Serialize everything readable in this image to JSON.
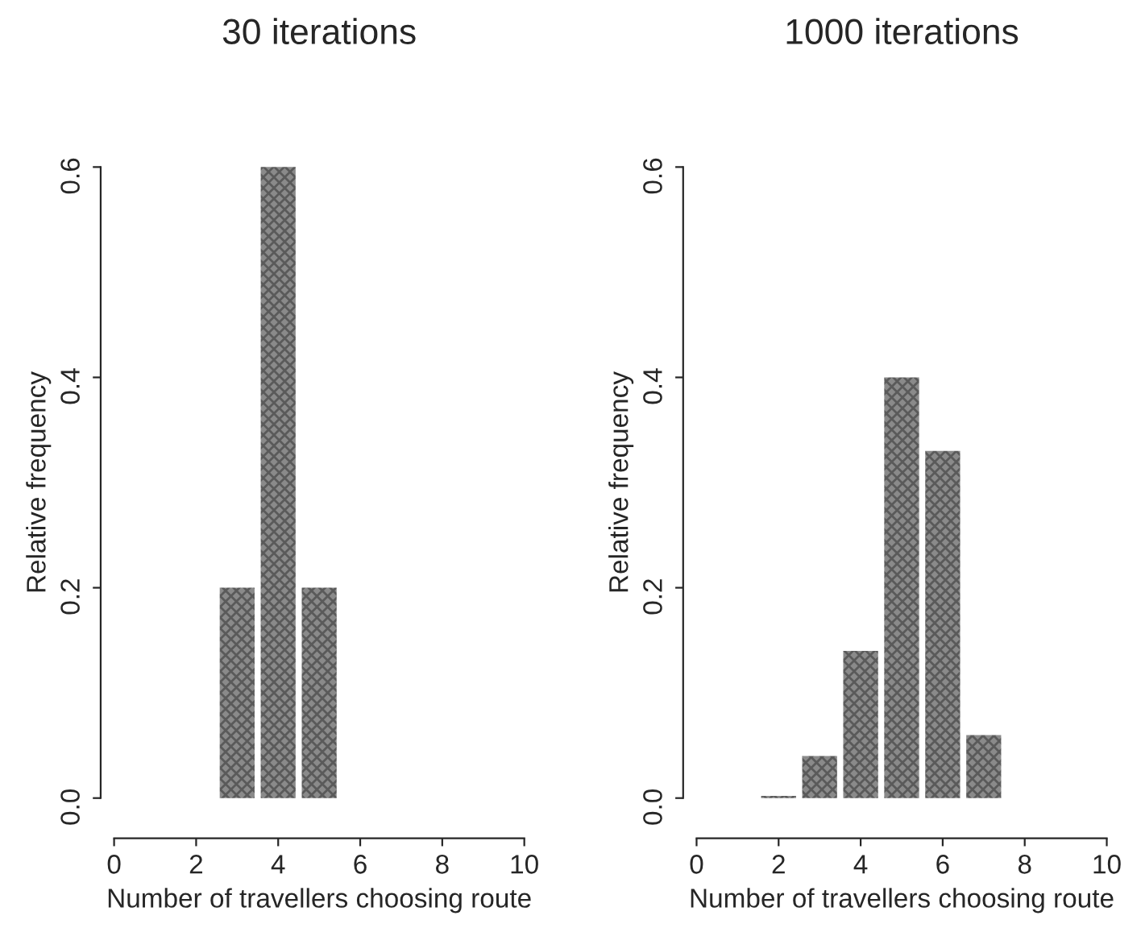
{
  "chart_data": [
    {
      "type": "bar",
      "title": "30 iterations",
      "xlabel": "Number of travellers choosing route",
      "ylabel": "Relative frequency",
      "x": [
        3,
        4,
        5
      ],
      "values": [
        0.2,
        0.6,
        0.2
      ],
      "color": "#8a8a8a",
      "xlim": [
        0,
        10
      ],
      "xticks": [
        0,
        2,
        4,
        6,
        8,
        10
      ],
      "ylim": [
        0,
        0.6
      ],
      "yticks": [
        {
          "value": 0,
          "label": "0.0"
        },
        0.2,
        0.4,
        0.6
      ],
      "grid": false,
      "legend": false
    },
    {
      "type": "bar",
      "title": "1000 iterations",
      "xlabel": "Number of travellers choosing route",
      "ylabel": "Relative frequency",
      "x": [
        2,
        3,
        4,
        5,
        6,
        7
      ],
      "values": [
        0.002,
        0.04,
        0.14,
        0.4,
        0.33,
        0.06
      ],
      "color": "#8a8a8a",
      "xlim": [
        0,
        10
      ],
      "xticks": [
        0,
        2,
        4,
        6,
        8,
        10
      ],
      "ylim": [
        0,
        0.6
      ],
      "yticks": [
        {
          "value": 0,
          "label": "0.0"
        },
        0.2,
        0.4,
        0.6
      ],
      "grid": false,
      "legend": false
    }
  ]
}
